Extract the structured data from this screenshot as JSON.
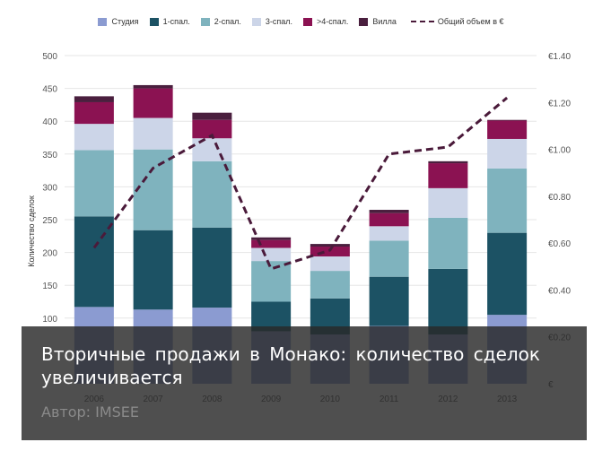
{
  "chart_data": {
    "type": "bar",
    "stacked": true,
    "categories": [
      "2006",
      "2007",
      "2008",
      "2009",
      "2010",
      "2011",
      "2012",
      "2013"
    ],
    "ylabel": "Количество сделок",
    "ylim": [
      0,
      500
    ],
    "yticks": [
      "500",
      "450",
      "400",
      "350",
      "300",
      "250",
      "200",
      "150",
      "100"
    ],
    "y2lim": [
      0,
      1.4
    ],
    "y2ticks": [
      "€1.40",
      "€1.20",
      "€1.00",
      "€0.80",
      "€0.60",
      "€0.40",
      "€0.20",
      "€"
    ],
    "grid": true,
    "legend_position": "top",
    "series": [
      {
        "name": "Студия",
        "color": "#8b9bd1",
        "values": [
          117,
          113,
          116,
          80,
          75,
          88,
          75,
          105
        ]
      },
      {
        "name": "1-спал.",
        "color": "#1c5264",
        "values": [
          138,
          121,
          122,
          45,
          55,
          75,
          100,
          125
        ]
      },
      {
        "name": "2-спал.",
        "color": "#7fb3be",
        "values": [
          101,
          123,
          101,
          62,
          42,
          55,
          78,
          98
        ]
      },
      {
        "name": "3-спал.",
        "color": "#ccd5e8",
        "values": [
          40,
          48,
          35,
          20,
          22,
          22,
          45,
          45
        ]
      },
      {
        "name": ">4-спал.",
        "color": "#8b1252",
        "values": [
          33,
          45,
          28,
          12,
          15,
          20,
          38,
          28
        ]
      },
      {
        "name": "Вилла",
        "color": "#4a1f3e",
        "values": [
          9,
          5,
          11,
          4,
          4,
          5,
          3,
          1
        ]
      }
    ],
    "line_series": {
      "name": "Общий объем в €",
      "color": "#4a1a3a",
      "values": [
        0.58,
        0.92,
        1.06,
        0.49,
        0.57,
        0.98,
        1.01,
        1.22
      ]
    }
  },
  "overlay": {
    "title": "Вторичные продажи в Монако: количество сделок увеличивается",
    "author": "Автор: IMSEE"
  }
}
